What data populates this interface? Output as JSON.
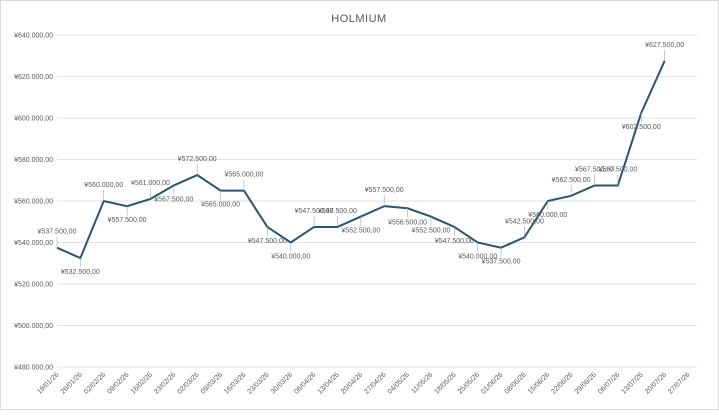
{
  "chart_data": {
    "type": "line",
    "title": "HOLMIUM",
    "categories": [
      "19/01/26",
      "26/01/26",
      "02/02/26",
      "09/02/26",
      "16/02/26",
      "23/02/26",
      "02/03/26",
      "09/03/26",
      "16/03/26",
      "23/03/26",
      "30/03/26",
      "06/04/26",
      "13/04/26",
      "20/04/26",
      "27/04/26",
      "04/05/26",
      "11/05/26",
      "18/05/26",
      "25/05/26",
      "01/06/26",
      "08/06/26",
      "15/06/26",
      "22/06/26",
      "29/06/26",
      "06/07/26",
      "13/07/26",
      "20/07/26",
      "27/07/26"
    ],
    "series": [
      {
        "color": "#2a5673",
        "values": [
          537500,
          532500,
          560000,
          557500,
          561000,
          567500,
          572500,
          565000,
          565000,
          547500,
          540000,
          547500,
          547500,
          552500,
          557500,
          556500,
          552500,
          547500,
          540000,
          537500,
          542500,
          560000,
          562500,
          567500,
          567500,
          602500,
          627500,
          null
        ],
        "value_labels": [
          "¥537.500,00",
          "¥532.500,00",
          "¥560.000,00",
          "¥557.500,00",
          "¥561.000,00",
          "¥567.500,00",
          "¥572.500,00",
          "¥565.000,00",
          "¥565.000,00",
          "¥547.500,00",
          "¥540.000,00",
          "¥547.500,00",
          "¥547.500,00",
          "¥552.500,00",
          "¥557.500,00",
          "¥556.500,00",
          "¥552.500,00",
          "¥547.500,00",
          "¥540.000,00",
          "¥537.500,00",
          "¥542.500,00",
          "¥560.000,00",
          "¥562.500,00",
          "¥567.500,00",
          "¥567.500,00",
          "¥602.500,00",
          "¥627.500,00",
          null
        ]
      }
    ],
    "ylim": [
      480000,
      640000
    ],
    "yticks": [
      {
        "value": 480000,
        "label": "¥480.000,00"
      },
      {
        "value": 500000,
        "label": "¥500.000,00"
      },
      {
        "value": 520000,
        "label": "¥520.000,00"
      },
      {
        "value": 540000,
        "label": "¥540.000,00"
      },
      {
        "value": 560000,
        "label": "¥560.000,00"
      },
      {
        "value": 580000,
        "label": "¥580.000,00"
      },
      {
        "value": 600000,
        "label": "¥600.000,00"
      },
      {
        "value": 620000,
        "label": "¥620.000,00"
      },
      {
        "value": 640000,
        "label": "¥640.000,00"
      }
    ],
    "grid": true
  }
}
